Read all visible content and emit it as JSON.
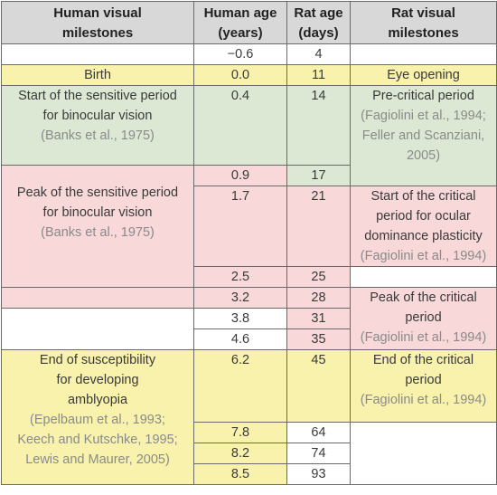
{
  "headers": {
    "human_milestones": [
      "Human visual",
      "milestones"
    ],
    "human_age": [
      "Human age",
      "(years)"
    ],
    "rat_age": [
      "Rat age",
      "(days)"
    ],
    "rat_milestones": [
      "Rat visual",
      "milestones"
    ]
  },
  "rows": [
    {
      "human_age": "−0.6",
      "rat_age": "4"
    },
    {
      "human_age": "0.0",
      "rat_age": "11"
    },
    {
      "human_age": "0.4",
      "rat_age": "14"
    },
    {
      "human_age": "0.9",
      "rat_age": "17"
    },
    {
      "human_age": "1.7",
      "rat_age": "21"
    },
    {
      "human_age": "2.5",
      "rat_age": "25"
    },
    {
      "human_age": "3.2",
      "rat_age": "28"
    },
    {
      "human_age": "3.8",
      "rat_age": "31"
    },
    {
      "human_age": "4.6",
      "rat_age": "35"
    },
    {
      "human_age": "6.2",
      "rat_age": "45"
    },
    {
      "human_age": "7.8",
      "rat_age": "64"
    },
    {
      "human_age": "8.2",
      "rat_age": "74"
    },
    {
      "human_age": "8.5",
      "rat_age": "93"
    }
  ],
  "human_milestones": {
    "birth": "Birth",
    "sensitive_start": {
      "text": [
        "Start of the sensitive period",
        "for binocular vision"
      ],
      "cite": "Banks et al., 1975"
    },
    "sensitive_peak": {
      "text": [
        "Peak of the sensitive period",
        "for binocular vision"
      ],
      "cite": "Banks et al., 1975"
    },
    "amblyopia_end": {
      "text": [
        "End of susceptibility",
        "for developing",
        "amblyopia"
      ],
      "cite": [
        "Epelbaum et al., 1993;",
        "Keech and Kutschke, 1995;",
        "Lewis and Maurer, 2005)"
      ],
      "cite_open": "("
    }
  },
  "rat_milestones": {
    "eye_opening": "Eye opening",
    "pre_critical": {
      "text": "Pre-critical period",
      "cite": [
        "(Fagiolini et al., 1994;",
        "Feller and Scanziani,",
        "2005)"
      ]
    },
    "critical_start": {
      "text": [
        "Start of the critical",
        "period for ocular",
        "dominance plasticity"
      ],
      "cite": "(Fagiolini et al., 1994)"
    },
    "critical_peak": {
      "text": [
        "Peak of the critical",
        "period"
      ],
      "cite": "(Fagiolini et al., 1994)"
    },
    "critical_end": {
      "text": [
        "End of the critical",
        "period"
      ],
      "cite": "(Fagiolini et al., 1994)"
    }
  },
  "colors": {
    "header": "#d8d8d8",
    "green": "#dde8d4",
    "pink": "#f8d8d8",
    "yellow": "#f8f2ad",
    "citation": "#8a8a8a"
  }
}
